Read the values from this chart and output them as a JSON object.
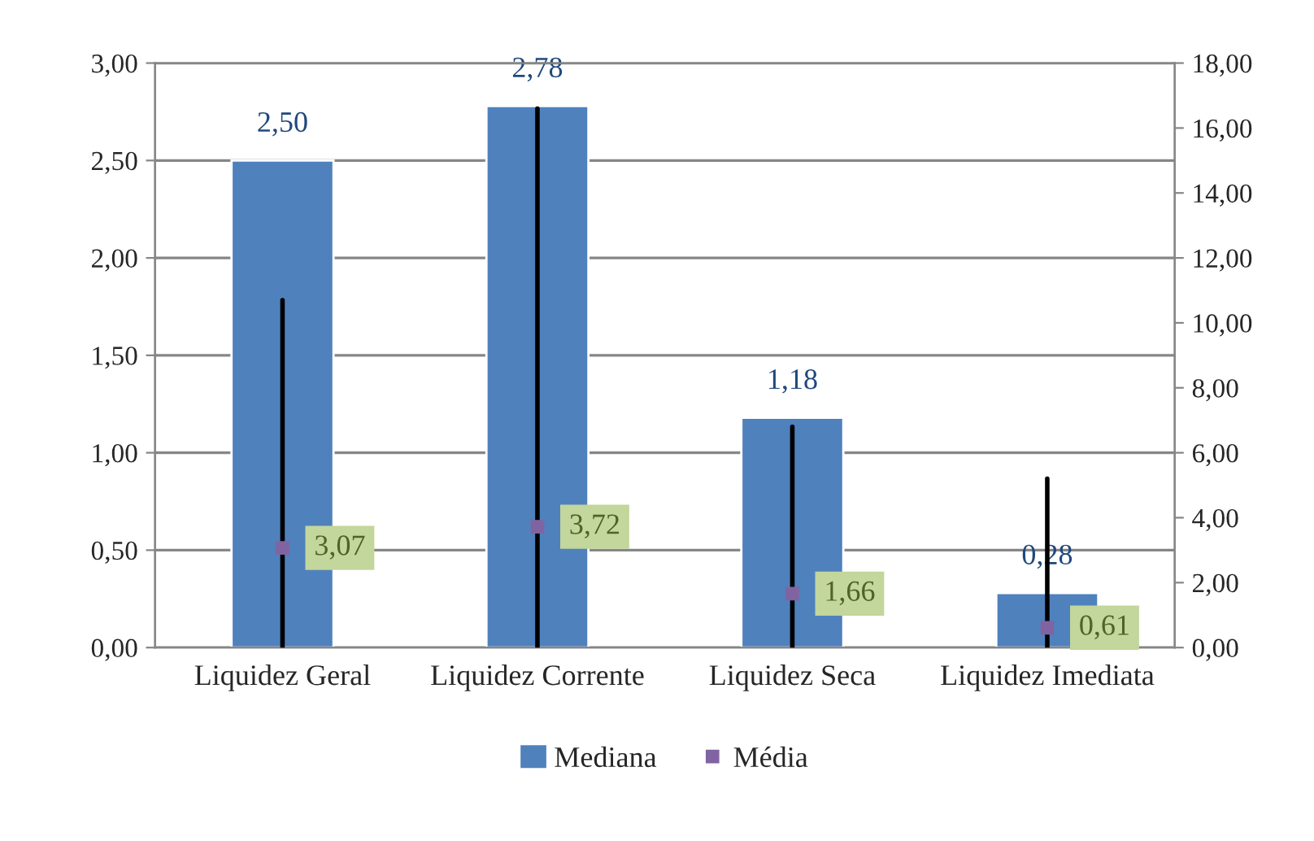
{
  "chart_data": {
    "type": "bar",
    "categories": [
      "Liquidez Geral",
      "Liquidez Corrente",
      "Liquidez Seca",
      "Liquidez Imediata"
    ],
    "series": [
      {
        "name": "Mediana",
        "color": "#4f81bd",
        "values": [
          2.5,
          2.78,
          1.18,
          0.28
        ],
        "value_labels": [
          "2,50",
          "2,78",
          "1,18",
          "0,28"
        ]
      },
      {
        "name": "Média",
        "type": "scatter",
        "axis": "y2",
        "color": "#8064a2",
        "marker": "square",
        "values": [
          3.07,
          3.72,
          1.66,
          0.61
        ],
        "value_labels": [
          "3,07",
          "3,72",
          "1,66",
          "0,61"
        ],
        "errors": [
          [
            0,
            10.7
          ],
          [
            0,
            16.6
          ],
          [
            0,
            6.8
          ],
          [
            0,
            5.2
          ]
        ]
      }
    ],
    "ylim": [
      0,
      3
    ],
    "yticks": [
      {
        "value": 0,
        "label": "0,00"
      },
      {
        "value": 0.5,
        "label": "0,50"
      },
      {
        "value": 1,
        "label": "1,00"
      },
      {
        "value": 1.5,
        "label": "1,50"
      },
      {
        "value": 2,
        "label": "2,00"
      },
      {
        "value": 2.5,
        "label": "2,50"
      },
      {
        "value": 3,
        "label": "3,00"
      }
    ],
    "y2lim": [
      0,
      18
    ],
    "y2ticks": [
      {
        "value": 0,
        "label": "0,00"
      },
      {
        "value": 2,
        "label": "2,00"
      },
      {
        "value": 4,
        "label": "4,00"
      },
      {
        "value": 6,
        "label": "6,00"
      },
      {
        "value": 8,
        "label": "8,00"
      },
      {
        "value": 10,
        "label": "10,00"
      },
      {
        "value": 12,
        "label": "12,00"
      },
      {
        "value": 14,
        "label": "14,00"
      },
      {
        "value": 16,
        "label": "16,00"
      },
      {
        "value": 18,
        "label": "18,00"
      }
    ],
    "grid": "y",
    "legend": "bottom"
  }
}
